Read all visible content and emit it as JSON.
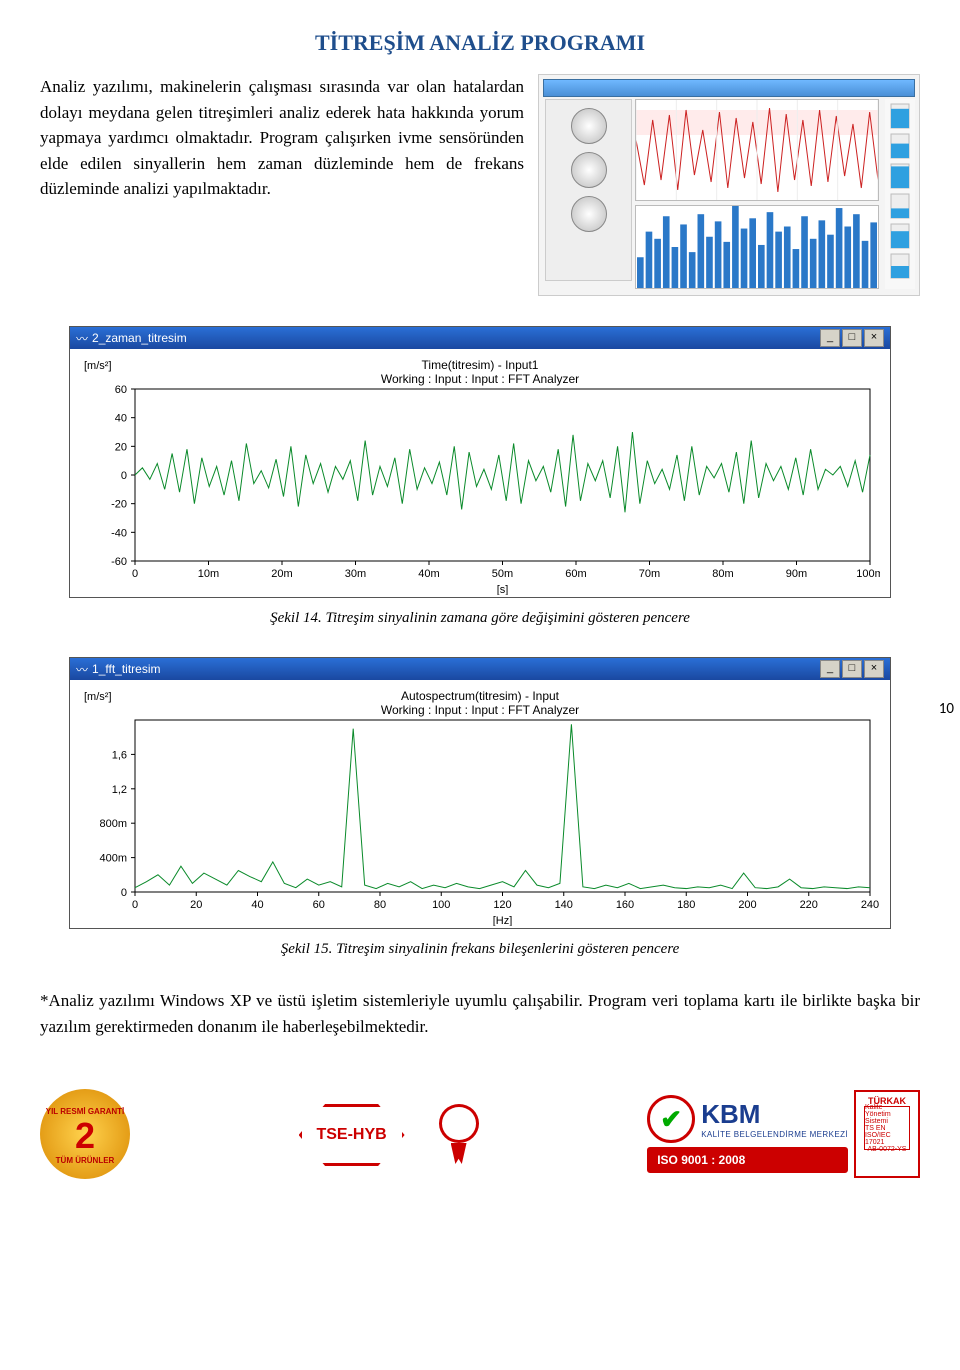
{
  "title": "TİTREŞİM ANALİZ PROGRAMI",
  "intro": "Analiz yazılımı, makinelerin çalışması sırasında var olan hatalardan dolayı meydana gelen titreşimleri analiz ederek hata hakkında yorum yapmaya yardımcı olmaktadır. Program çalışırken ivme sensöründen elde edilen sinyallerin hem zaman düzleminde hem de frekans düzleminde analizi yapılmaktadır.",
  "page_number": "10",
  "windows": {
    "time": {
      "title_prefix": "2_zaman_titresim",
      "y_unit": "[m/s²]",
      "chart_title": "Time(titresim) - Input1",
      "chart_sub": "Working : Input : Input : FFT Analyzer",
      "x_unit": "[s]",
      "yticks": [
        60,
        40,
        20,
        0,
        -20,
        -40,
        -60
      ],
      "xticks": [
        "0",
        "10m",
        "20m",
        "30m",
        "40m",
        "50m",
        "60m",
        "70m",
        "80m",
        "90m",
        "100m"
      ],
      "line_color": "#0a8a2a",
      "series": [
        0,
        5,
        -3,
        8,
        -10,
        15,
        -12,
        18,
        -20,
        12,
        -8,
        6,
        -14,
        10,
        -18,
        22,
        -6,
        3,
        -9,
        11,
        -15,
        20,
        -22,
        14,
        -6,
        8,
        -12,
        6,
        -3,
        10,
        -18,
        24,
        -14,
        6,
        -8,
        12,
        -20,
        18,
        -10,
        5,
        -6,
        9,
        -14,
        20,
        -24,
        16,
        -8,
        4,
        -10,
        14,
        -18,
        22,
        -20,
        10,
        -4,
        6,
        -12,
        18,
        -22,
        28,
        -18,
        8,
        -4,
        10,
        -16,
        20,
        -26,
        30,
        -20,
        10,
        -6,
        4,
        -10,
        14,
        -18,
        20,
        -14,
        6,
        -2,
        8,
        -12,
        16,
        -20,
        24,
        -16,
        8,
        -4,
        6,
        -10,
        12,
        -14,
        18,
        -10,
        4,
        0,
        6,
        -8,
        10,
        -12,
        14
      ],
      "ylim": [
        -60,
        60
      ]
    },
    "fft": {
      "title_prefix": "1_fft_titresim",
      "y_unit": "[m/s²]",
      "chart_title": "Autospectrum(titresim) - Input",
      "chart_sub": "Working : Input : Input : FFT Analyzer",
      "x_unit": "[Hz]",
      "yticks": [
        "1,6",
        "1,2",
        "800m",
        "400m",
        "0"
      ],
      "xticks": [
        "0",
        "20",
        "40",
        "60",
        "80",
        "100",
        "120",
        "140",
        "160",
        "180",
        "200",
        "220",
        "240"
      ],
      "line_color": "#0a8a2a",
      "series": [
        0.05,
        0.12,
        0.2,
        0.08,
        0.3,
        0.1,
        0.22,
        0.15,
        0.08,
        0.25,
        0.18,
        0.12,
        0.35,
        0.1,
        0.05,
        0.15,
        0.08,
        0.12,
        0.06,
        1.9,
        0.08,
        0.04,
        0.1,
        0.06,
        0.12,
        0.04,
        0.08,
        0.05,
        0.1,
        0.06,
        0.04,
        0.08,
        0.12,
        0.06,
        0.25,
        0.08,
        0.05,
        0.1,
        1.95,
        0.06,
        0.04,
        0.08,
        0.05,
        0.1,
        0.04,
        0.06,
        0.08,
        0.05,
        0.04,
        0.06,
        0.05,
        0.08,
        0.04,
        0.22,
        0.05,
        0.04,
        0.06,
        0.15,
        0.05,
        0.04,
        0.06,
        0.05,
        0.04,
        0.06,
        0.05
      ],
      "ylim": [
        0,
        2.0
      ]
    }
  },
  "captions": {
    "time": "Şekil 14. Titreşim sinyalinin zamana göre değişimini gösteren pencere",
    "fft": "Şekil 15. Titreşim sinyalinin frekans bileşenlerini gösteren pencere"
  },
  "footnote": "*Analiz yazılımı Windows XP ve üstü işletim sistemleriyle uyumlu çalışabilir. Program veri toplama kartı ile birlikte başka bir yazılım gerektirmeden donanım ile haberleşebilmektedir.",
  "footer": {
    "guarantee_top": "YIL RESMİ GARANTİ",
    "guarantee_big": "2",
    "guarantee_bottom": "TÜM ÜRÜNLER",
    "tse": "TSE-HYB",
    "kbm": "KBM",
    "kbm_sub": "KALİTE BELGELENDİRME MERKEZİ",
    "iso": "ISO 9001 : 2008",
    "turkak": "TÜRKAK",
    "turkak_sub1": "Kalite Yönetim Sistemi",
    "turkak_sub2": "TS EN ISO/IEC 17021",
    "turkak_code": "AB-0072-YS"
  },
  "software_mock": {
    "red_series": [
      60,
      15,
      80,
      20,
      85,
      10,
      90,
      25,
      70,
      18,
      88,
      12,
      82,
      22,
      78,
      16,
      92,
      8,
      86,
      20,
      80,
      14,
      90,
      18,
      84,
      24,
      76,
      12,
      88,
      20
    ],
    "bars": [
      30,
      55,
      48,
      70,
      40,
      62,
      35,
      72,
      50,
      65,
      45,
      80,
      58,
      68,
      42,
      74,
      55,
      60,
      38,
      70,
      48,
      66,
      52,
      78,
      60,
      72,
      46,
      64
    ],
    "vbar_levels": [
      0.8,
      0.6,
      0.9,
      0.4,
      0.7,
      0.5
    ],
    "colors": {
      "red": "#c22",
      "blue": "#2a78c8",
      "cyan": "#2fa0e0"
    }
  }
}
